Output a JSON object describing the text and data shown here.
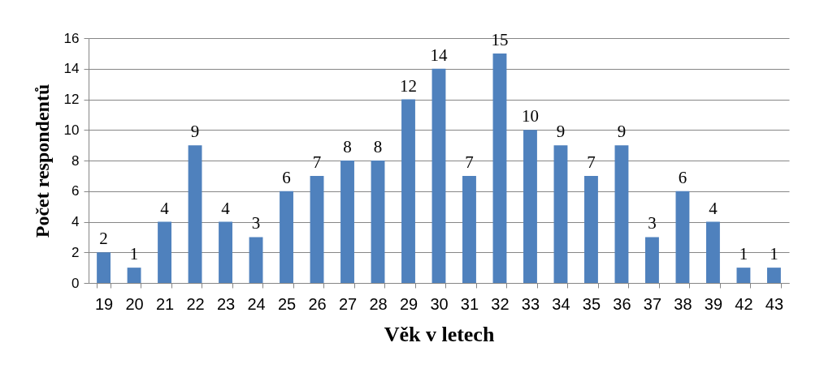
{
  "chart_data": {
    "type": "bar",
    "xlabel": "Věk v letech",
    "ylabel": "Počet respondentů",
    "categories": [
      "19",
      "20",
      "21",
      "22",
      "23",
      "24",
      "25",
      "26",
      "27",
      "28",
      "29",
      "30",
      "31",
      "32",
      "33",
      "34",
      "35",
      "36",
      "37",
      "38",
      "39",
      "42",
      "43"
    ],
    "values": [
      2,
      1,
      4,
      9,
      4,
      3,
      6,
      7,
      8,
      8,
      12,
      14,
      7,
      15,
      10,
      9,
      7,
      9,
      3,
      6,
      4,
      1,
      1
    ],
    "color": "#4f81bd",
    "ylim": [
      0,
      16
    ],
    "yticks": [
      0,
      2,
      4,
      6,
      8,
      10,
      12,
      14,
      16
    ],
    "grid": "y",
    "data_labels": true
  }
}
